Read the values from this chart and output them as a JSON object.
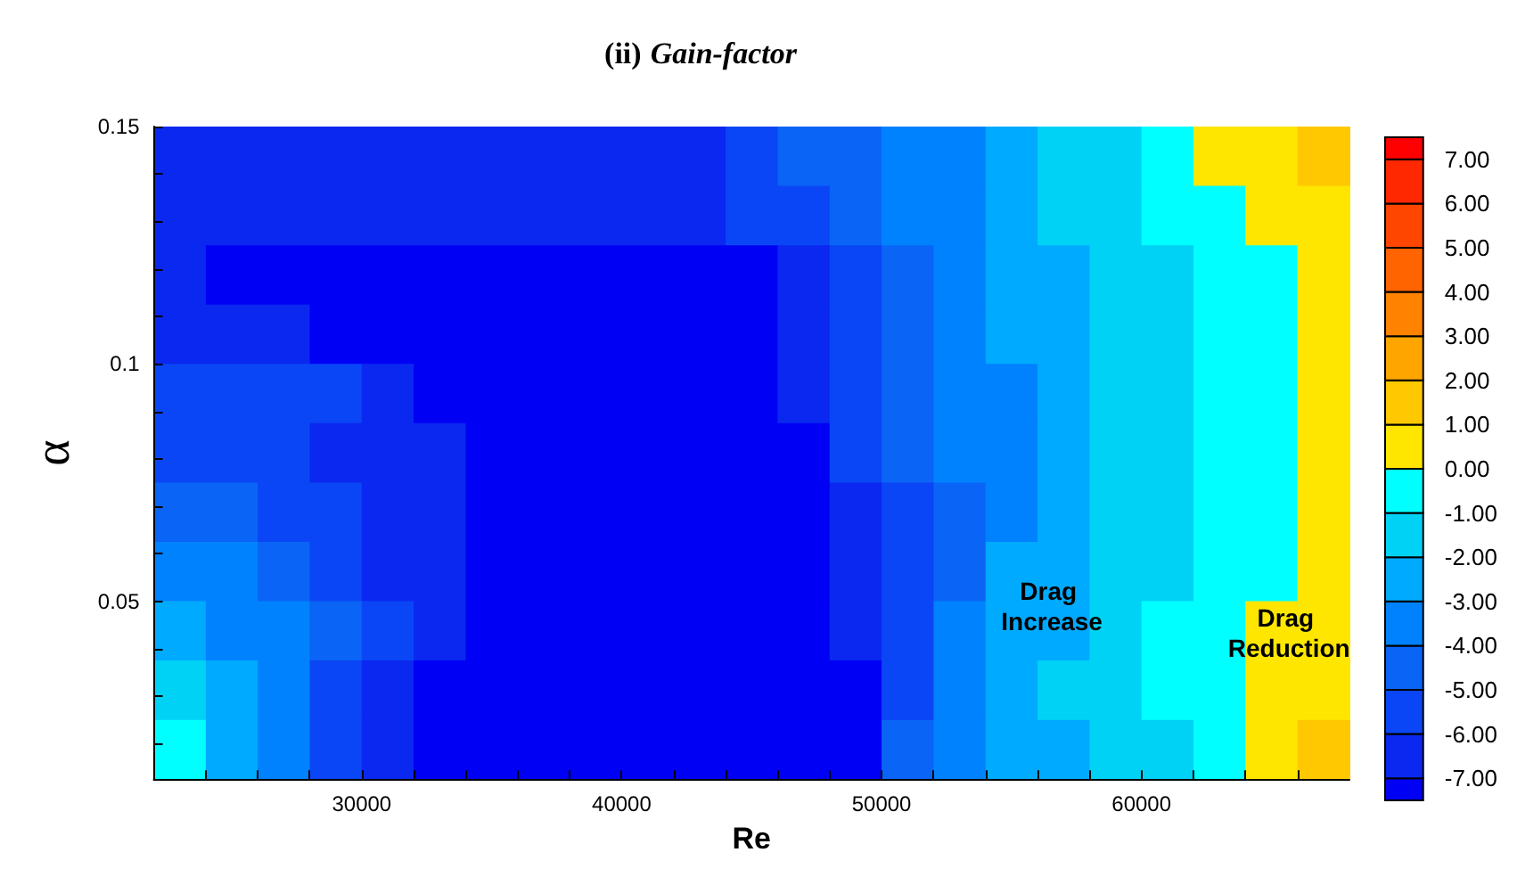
{
  "chart_data": {
    "type": "heatmap",
    "title": "(ii) Gain-factor",
    "xlabel": "Re",
    "ylabel": "α",
    "cells": [
      [
        -6.5,
        -6.5,
        -6.5,
        -6.5,
        -6.5,
        -6.5,
        -6.5,
        -6.5,
        -6.5,
        -6.5,
        -6.5,
        -5.5,
        -4.5,
        -4.5,
        -3.5,
        -3.5,
        -2.5,
        -1.5,
        -1.5,
        -0.5,
        0.5,
        0.5,
        1.5
      ],
      [
        -6.5,
        -6.5,
        -6.5,
        -6.5,
        -6.5,
        -6.5,
        -6.5,
        -6.5,
        -6.5,
        -6.5,
        -6.5,
        -5.5,
        -5.5,
        -4.5,
        -3.5,
        -3.5,
        -2.5,
        -1.5,
        -1.5,
        -0.5,
        -0.5,
        0.5,
        0.5
      ],
      [
        -6.5,
        -7.25,
        -7.25,
        -7.25,
        -7.25,
        -7.25,
        -7.25,
        -7.25,
        -7.25,
        -7.25,
        -7.25,
        -7.25,
        -6.5,
        -5.5,
        -4.5,
        -3.5,
        -2.5,
        -2.5,
        -1.5,
        -1.5,
        -0.5,
        -0.5,
        0.5
      ],
      [
        -6.5,
        -6.5,
        -6.5,
        -7.25,
        -7.25,
        -7.25,
        -7.25,
        -7.25,
        -7.25,
        -7.25,
        -7.25,
        -7.25,
        -6.5,
        -5.5,
        -4.5,
        -3.5,
        -2.5,
        -2.5,
        -1.5,
        -1.5,
        -0.5,
        -0.5,
        0.5
      ],
      [
        -5.5,
        -5.5,
        -5.5,
        -5.5,
        -6.5,
        -7.25,
        -7.25,
        -7.25,
        -7.25,
        -7.25,
        -7.25,
        -7.25,
        -6.5,
        -5.5,
        -4.5,
        -3.5,
        -3.5,
        -2.5,
        -1.5,
        -1.5,
        -0.5,
        -0.5,
        0.5
      ],
      [
        -5.5,
        -5.5,
        -5.5,
        -6.5,
        -6.5,
        -6.5,
        -7.25,
        -7.25,
        -7.25,
        -7.25,
        -7.25,
        -7.25,
        -7.25,
        -5.5,
        -4.5,
        -3.5,
        -3.5,
        -2.5,
        -1.5,
        -1.5,
        -0.5,
        -0.5,
        0.5
      ],
      [
        -4.5,
        -4.5,
        -5.5,
        -5.5,
        -6.5,
        -6.5,
        -7.25,
        -7.25,
        -7.25,
        -7.25,
        -7.25,
        -7.25,
        -7.25,
        -6.5,
        -5.5,
        -4.5,
        -3.5,
        -2.5,
        -1.5,
        -1.5,
        -0.5,
        -0.5,
        0.5
      ],
      [
        -3.5,
        -3.5,
        -4.5,
        -5.5,
        -6.5,
        -6.5,
        -7.25,
        -7.25,
        -7.25,
        -7.25,
        -7.25,
        -7.25,
        -7.25,
        -6.5,
        -5.5,
        -4.5,
        -2.5,
        -2.5,
        -1.5,
        -1.5,
        -0.5,
        -0.5,
        0.5
      ],
      [
        -2.5,
        -3.5,
        -3.5,
        -4.5,
        -5.5,
        -6.5,
        -7.25,
        -7.25,
        -7.25,
        -7.25,
        -7.25,
        -7.25,
        -7.25,
        -6.5,
        -5.5,
        -3.5,
        -2.5,
        -2.5,
        -1.5,
        -0.5,
        -0.5,
        0.5,
        0.5
      ],
      [
        -1.5,
        -2.5,
        -3.5,
        -5.5,
        -6.5,
        -7.25,
        -7.25,
        -7.25,
        -7.25,
        -7.25,
        -7.25,
        -7.25,
        -7.25,
        -7.25,
        -5.5,
        -3.5,
        -2.5,
        -1.5,
        -1.5,
        -0.5,
        -0.5,
        0.5,
        0.5
      ],
      [
        -0.5,
        -2.5,
        -3.5,
        -5.5,
        -6.5,
        -7.25,
        -7.25,
        -7.25,
        -7.25,
        -7.25,
        -7.25,
        -7.25,
        -7.25,
        -7.25,
        -4.5,
        -3.5,
        -2.5,
        -2.5,
        -1.5,
        -1.5,
        -0.5,
        0.5,
        1.5
      ]
    ],
    "colors": [
      "#0000f5",
      "#0a28f0",
      "#0a46f5",
      "#0a64f5",
      "#0082ff",
      "#00aaff",
      "#00d2f5",
      "#00ffff",
      "#ffe600",
      "#ffc800",
      "#ffa500",
      "#ff8200",
      "#ff6400",
      "#ff4600",
      "#ff2800",
      "#ff0000"
    ],
    "clim": [
      -7.5,
      7.5
    ],
    "cticks": [
      {
        "value": -7,
        "label": "-7.00"
      },
      {
        "value": -6,
        "label": "-6.00"
      },
      {
        "value": -5,
        "label": "-5.00"
      },
      {
        "value": -4,
        "label": "-4.00"
      },
      {
        "value": -3,
        "label": "-3.00"
      },
      {
        "value": -2,
        "label": "-2.00"
      },
      {
        "value": -1,
        "label": "-1.00"
      },
      {
        "value": 0,
        "label": "0.00"
      },
      {
        "value": 1,
        "label": "1.00"
      },
      {
        "value": 2,
        "label": "2.00"
      },
      {
        "value": 3,
        "label": "3.00"
      },
      {
        "value": 4,
        "label": "4.00"
      },
      {
        "value": 5,
        "label": "5.00"
      },
      {
        "value": 6,
        "label": "6.00"
      },
      {
        "value": 7,
        "label": "7.00"
      }
    ],
    "xlim": [
      22000,
      68000
    ],
    "xticks": [
      {
        "value": 24000,
        "label": null
      },
      {
        "value": 26000,
        "label": null
      },
      {
        "value": 28000,
        "label": null
      },
      30000,
      {
        "value": 32000,
        "label": null
      },
      {
        "value": 34000,
        "label": null
      },
      {
        "value": 36000,
        "label": null
      },
      {
        "value": 38000,
        "label": null
      },
      40000,
      {
        "value": 42000,
        "label": null
      },
      {
        "value": 44000,
        "label": null
      },
      {
        "value": 46000,
        "label": null
      },
      {
        "value": 48000,
        "label": null
      },
      50000,
      {
        "value": 52000,
        "label": null
      },
      {
        "value": 54000,
        "label": null
      },
      {
        "value": 56000,
        "label": null
      },
      {
        "value": 58000,
        "label": null
      },
      60000,
      {
        "value": 62000,
        "label": null
      },
      {
        "value": 64000,
        "label": null
      },
      {
        "value": 66000,
        "label": null
      }
    ],
    "ylim": [
      0.0125,
      0.15
    ],
    "yticks": [
      {
        "value": 0.02,
        "label": null
      },
      {
        "value": 0.03,
        "label": null
      },
      {
        "value": 0.04,
        "label": null
      },
      0.05,
      {
        "value": 0.06,
        "label": null
      },
      {
        "value": 0.07,
        "label": null
      },
      {
        "value": 0.08,
        "label": null
      },
      {
        "value": 0.09,
        "label": null
      },
      0.1,
      {
        "value": 0.11,
        "label": null
      },
      {
        "value": 0.12,
        "label": null
      },
      {
        "value": 0.13,
        "label": null
      },
      {
        "value": 0.14,
        "label": null
      },
      0.15
    ],
    "annotations": [
      "Drag Increase",
      "Drag Reduction"
    ]
  }
}
